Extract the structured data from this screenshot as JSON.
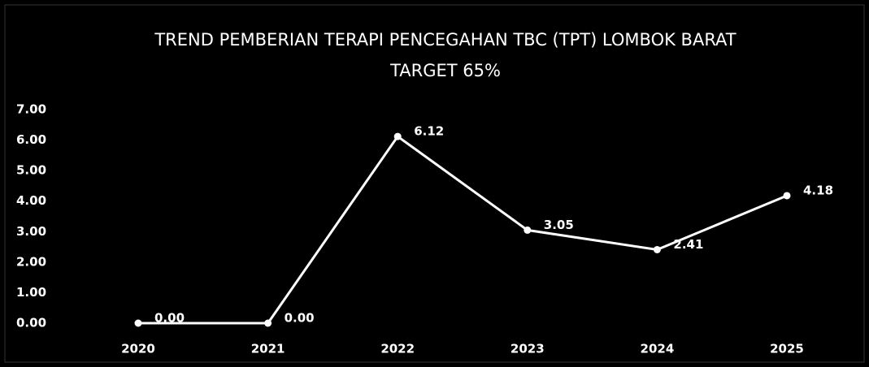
{
  "chart_data": {
    "type": "line",
    "title": "TREND PEMBERIAN TERAPI PENCEGAHAN TBC (TPT) LOMBOK BARAT",
    "subtitle": "TARGET 65%",
    "categories": [
      "2020",
      "2021",
      "2022",
      "2023",
      "2024",
      "2025"
    ],
    "series": [
      {
        "name": "TPT",
        "color": "#ffffff",
        "values": [
          0,
          0,
          6.12,
          3.05,
          2.41,
          4.18
        ],
        "value_labels": [
          "0.00",
          "0.00",
          "6.12",
          "3.05",
          "2.41",
          "4.18"
        ]
      }
    ],
    "ylim": [
      0,
      7
    ],
    "yticks": [
      {
        "value": 0,
        "label": "0.00"
      },
      {
        "value": 1,
        "label": "1.00"
      },
      {
        "value": 2,
        "label": "2.00"
      },
      {
        "value": 3,
        "label": "3.00"
      },
      {
        "value": 4,
        "label": "4.00"
      },
      {
        "value": 5,
        "label": "5.00"
      },
      {
        "value": 6,
        "label": "6.00"
      },
      {
        "value": 7,
        "label": "7.00"
      }
    ],
    "grid": false
  }
}
